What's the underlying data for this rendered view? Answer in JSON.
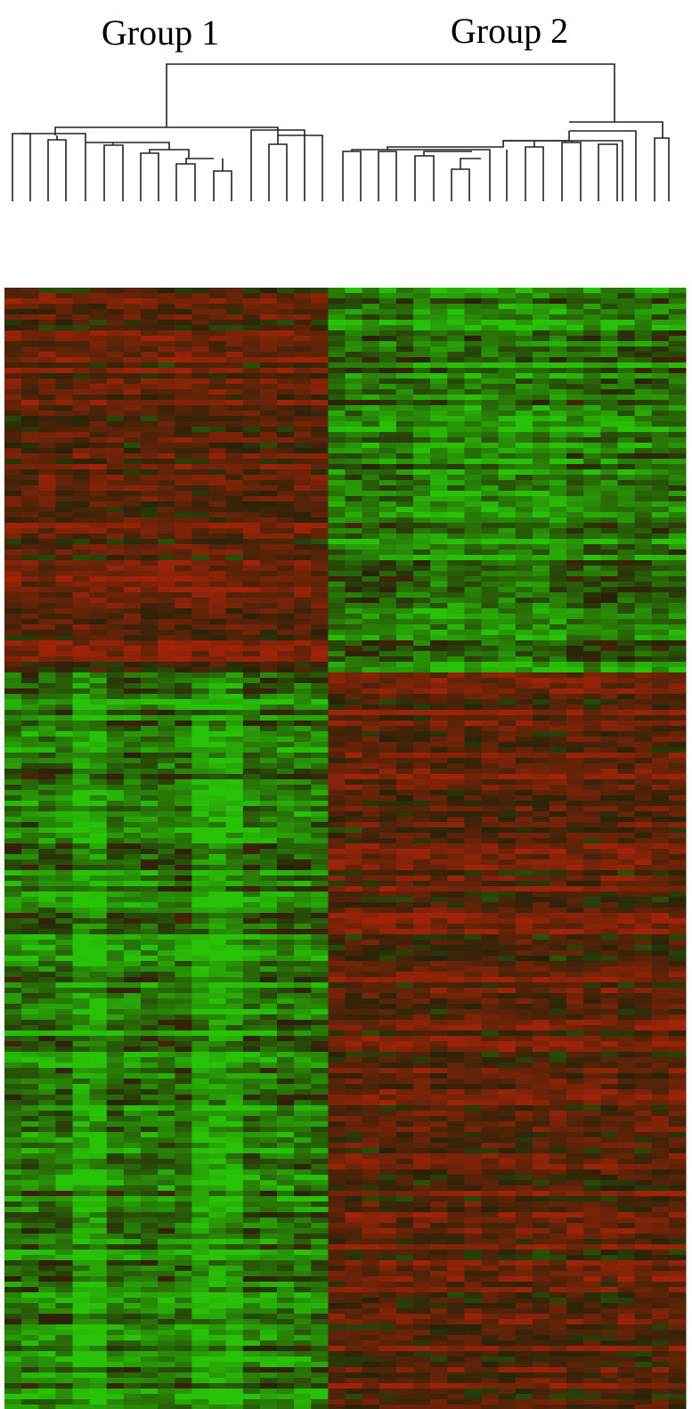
{
  "labels": {
    "group_1": "Group 1",
    "group_2": "Group 2"
  }
}
